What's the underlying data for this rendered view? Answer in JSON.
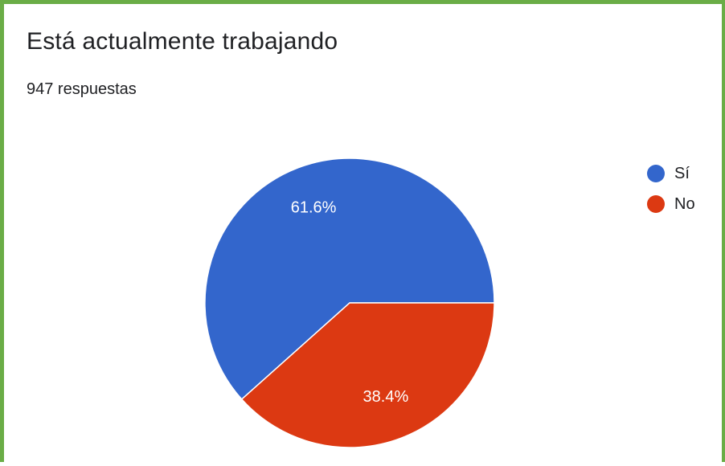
{
  "header": {
    "title": "Está actualmente trabajando",
    "responses": "947 respuestas"
  },
  "chart_data": {
    "type": "pie",
    "title": "Está actualmente trabajando",
    "subtitle": "947 respuestas",
    "categories": [
      "Sí",
      "No"
    ],
    "values": [
      61.6,
      38.4
    ],
    "data_labels": [
      "61.6%",
      "38.4%"
    ],
    "colors": [
      "#3366cc",
      "#dc3912"
    ],
    "label_color": "#ffffff",
    "legend": "right",
    "start_angle_deg": 0
  }
}
